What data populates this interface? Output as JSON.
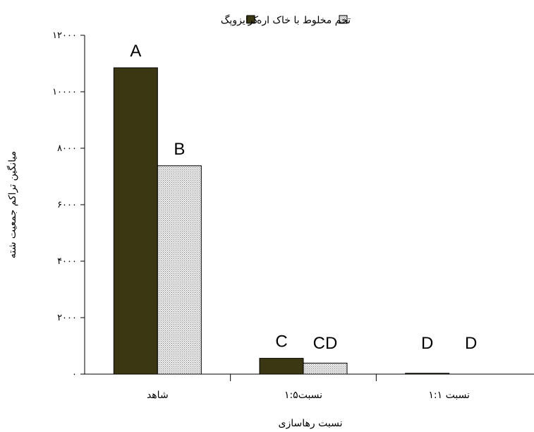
{
  "chart_data": {
    "type": "bar",
    "categories": [
      "شاهد",
      "نسبت۱:۵",
      "نسبت ۱:۱"
    ],
    "series": [
      {
        "name": "کرایزوپگ",
        "values": [
          10850,
          560,
          30
        ],
        "color": "#3a3712",
        "pattern": "solid"
      },
      {
        "name": "تخم مخلوط با خاک اره",
        "values": [
          7380,
          390,
          0
        ],
        "color": "#d9d9d9",
        "pattern": "dotted"
      }
    ],
    "significance_labels": [
      [
        "A",
        "B"
      ],
      [
        "C",
        "CD"
      ],
      [
        "D",
        "D"
      ]
    ],
    "xlabel": "نسبت رهاسازی",
    "ylabel": "میانگین تراکم جمعیت شته",
    "ylim": [
      0,
      12000
    ],
    "yticks": [
      0,
      2000,
      4000,
      6000,
      8000,
      10000,
      12000
    ],
    "ytick_labels": [
      "۰",
      "۲۰۰۰",
      "۴۰۰۰",
      "۶۰۰۰",
      "۸۰۰۰",
      "۱۰۰۰۰",
      "۱۲۰۰۰"
    ],
    "legend_position": "top",
    "grid": false
  }
}
